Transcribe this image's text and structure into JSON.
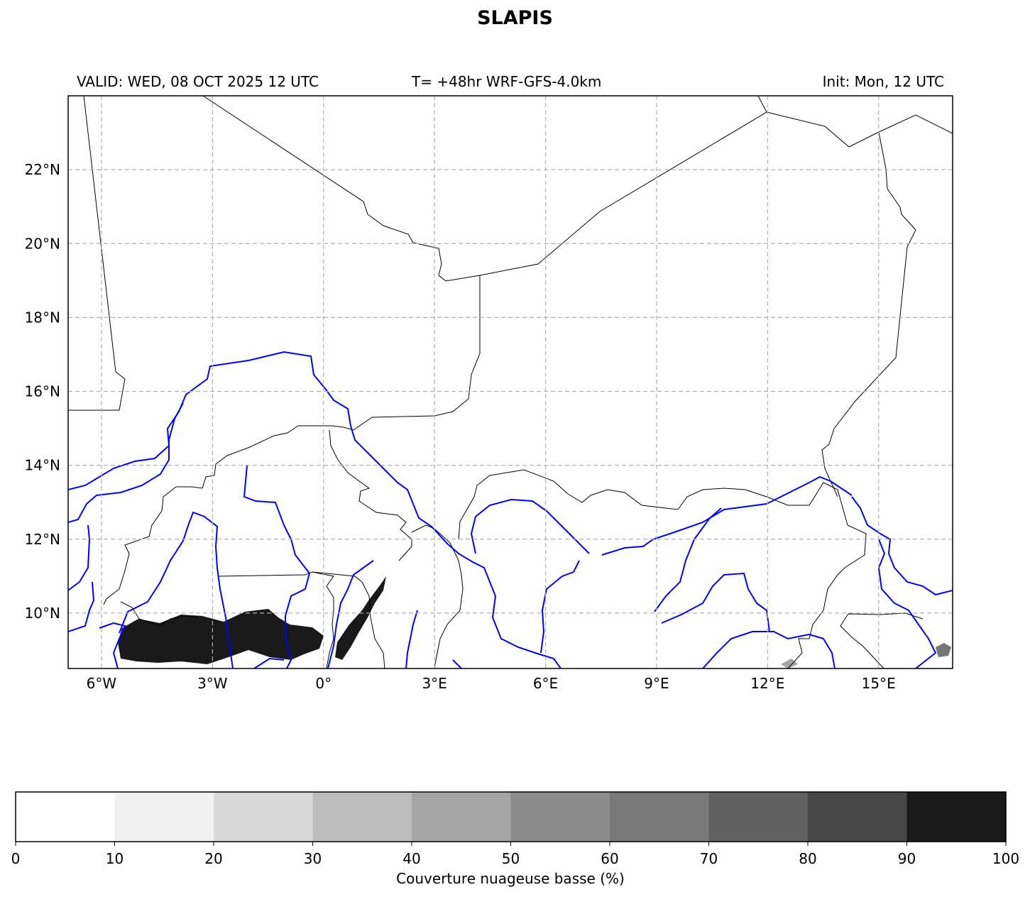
{
  "title": "SLAPIS",
  "header": {
    "valid": "VALID: WED, 08 OCT 2025 12 UTC",
    "model": "T= +48hr WRF-GFS-4.0km",
    "init": "Init: Mon, 12 UTC"
  },
  "map": {
    "lon_range": [
      -6.9,
      17.0
    ],
    "lat_range": [
      8.5,
      24.0
    ],
    "lon_ticks": [
      {
        "value": -6,
        "label": "6°W"
      },
      {
        "value": -3,
        "label": "3°W"
      },
      {
        "value": 0,
        "label": "0°"
      },
      {
        "value": 3,
        "label": "3°E"
      },
      {
        "value": 6,
        "label": "6°E"
      },
      {
        "value": 9,
        "label": "9°E"
      },
      {
        "value": 12,
        "label": "12°E"
      },
      {
        "value": 15,
        "label": "15°E"
      }
    ],
    "lat_ticks": [
      {
        "value": 10,
        "label": "10°N"
      },
      {
        "value": 12,
        "label": "12°N"
      },
      {
        "value": 14,
        "label": "14°N"
      },
      {
        "value": 16,
        "label": "16°N"
      },
      {
        "value": 18,
        "label": "18°N"
      },
      {
        "value": 20,
        "label": "20°N"
      },
      {
        "value": 22,
        "label": "22°N"
      }
    ],
    "gridlines": true,
    "colors": {
      "borders": "#000000",
      "rivers": "#0000ff",
      "grid": "#b0b0b0"
    }
  },
  "colorbar": {
    "label": "Couverture nuageuse basse (%)",
    "ticks": [
      "0",
      "10",
      "20",
      "30",
      "40",
      "50",
      "60",
      "70",
      "80",
      "90",
      "100"
    ],
    "colors": [
      "#ffffff",
      "#f0f0f0",
      "#d9d9d9",
      "#bdbdbd",
      "#a6a6a6",
      "#8c8c8c",
      "#797979",
      "#616161",
      "#474747",
      "#191919"
    ]
  }
}
